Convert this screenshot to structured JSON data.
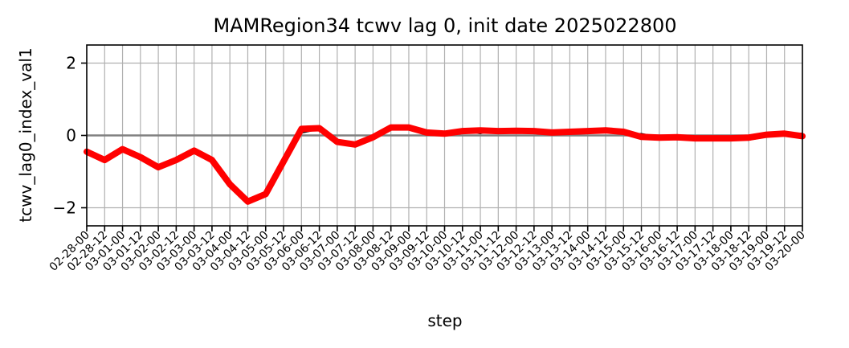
{
  "chart_data": {
    "type": "line",
    "title": "MAMRegion34 tcwv lag 0, init date 2025022800",
    "xlabel": "step",
    "ylabel": "tcwv_lag0_index_val1",
    "ylim": [
      -2.5,
      2.5
    ],
    "yticks": [
      -2,
      0,
      2
    ],
    "ytick_labels": [
      "−2",
      "0",
      "2"
    ],
    "grid": true,
    "zero_line": 0,
    "colors": {
      "members": "#000000",
      "mean": "#ff0000",
      "zero_line": "#808080",
      "grid": "#b0b0b0"
    },
    "categories": [
      "02-28-00",
      "02-28-12",
      "03-01-00",
      "03-01-12",
      "03-02-00",
      "03-02-12",
      "03-03-00",
      "03-03-12",
      "03-04-00",
      "03-04-12",
      "03-05-00",
      "03-05-12",
      "03-06-00",
      "03-06-12",
      "03-07-00",
      "03-07-12",
      "03-08-00",
      "03-08-12",
      "03-09-00",
      "03-09-12",
      "03-10-00",
      "03-10-12",
      "03-11-00",
      "03-11-12",
      "03-12-00",
      "03-12-12",
      "03-13-00",
      "03-13-12",
      "03-14-00",
      "03-14-12",
      "03-15-00",
      "03-15-12",
      "03-16-00",
      "03-16-12",
      "03-17-00",
      "03-17-12",
      "03-18-00",
      "03-18-12",
      "03-19-00",
      "03-19-12",
      "03-20-00"
    ],
    "mean": [
      -0.45,
      -0.68,
      -0.38,
      -0.6,
      -0.88,
      -0.68,
      -0.42,
      -0.68,
      -1.35,
      -1.83,
      -1.62,
      -0.72,
      0.18,
      0.2,
      -0.18,
      -0.25,
      -0.05,
      0.22,
      0.22,
      0.08,
      0.05,
      0.12,
      0.14,
      0.12,
      0.13,
      0.12,
      0.08,
      0.1,
      0.12,
      0.14,
      0.1,
      -0.04,
      -0.06,
      -0.05,
      -0.08,
      -0.08,
      -0.08,
      -0.06,
      0.02,
      0.05,
      -0.02
    ],
    "members": [
      [
        -0.45,
        -0.68,
        -0.38,
        -0.6,
        -0.92,
        -0.72,
        -0.4,
        -0.62,
        -1.35,
        -1.87,
        -1.56,
        -0.71,
        0.07,
        0.17,
        -0.19,
        -0.21,
        -0.04,
        0.28,
        0.25,
        0.11,
        0.09,
        0.12,
        0.05,
        0.16,
        0.16,
        0.18,
        0.12,
        0.09,
        0.05,
        0.21,
        0.05,
        0.05,
        -0.04,
        -0.12,
        -0.13,
        -0.08,
        -0.11,
        -0.13,
        -0.04,
        0.05,
        0.06
      ],
      [
        -0.47,
        -0.65,
        -0.36,
        -0.61,
        -0.85,
        -0.66,
        -0.44,
        -0.67,
        -1.31,
        -1.79,
        -1.63,
        -0.74,
        0.23,
        0.26,
        -0.18,
        -0.32,
        -0.08,
        0.25,
        0.18,
        0.07,
        0.02,
        0.14,
        0.18,
        0.07,
        0.14,
        0.09,
        0.03,
        0.13,
        0.17,
        0.12,
        0.06,
        -0.06,
        -0.09,
        0.01,
        -0.02,
        -0.14,
        -0.09,
        -0.03,
        0.06,
        0.08,
        -0.04
      ],
      [
        -0.42,
        -0.7,
        -0.37,
        -0.58,
        -0.87,
        -0.69,
        -0.41,
        -0.7,
        -1.38,
        -1.84,
        -1.68,
        -0.7,
        0.2,
        0.13,
        -0.12,
        -0.27,
        -0.05,
        0.18,
        0.26,
        0.05,
        0.07,
        0.07,
        0.12,
        0.1,
        0.08,
        0.15,
        0.11,
        0.06,
        0.09,
        0.17,
        0.13,
        -0.02,
        -0.03,
        -0.08,
        -0.11,
        -0.04,
        -0.05,
        -0.09,
        0.0,
        0.02,
        -0.06
      ],
      [
        -0.46,
        -0.66,
        -0.39,
        -0.63,
        -0.9,
        -0.64,
        -0.43,
        -0.66,
        -1.33,
        -1.81,
        -1.59,
        -0.77,
        0.16,
        0.24,
        -0.24,
        -0.22,
        -0.1,
        0.2,
        0.19,
        0.12,
        0.03,
        0.16,
        0.16,
        0.14,
        0.1,
        0.11,
        0.05,
        0.14,
        0.15,
        0.1,
        0.14,
        -0.07,
        -0.07,
        -0.02,
        -0.05,
        -0.1,
        -0.04,
        -0.02,
        0.04,
        0.07,
        0.01
      ]
    ]
  }
}
